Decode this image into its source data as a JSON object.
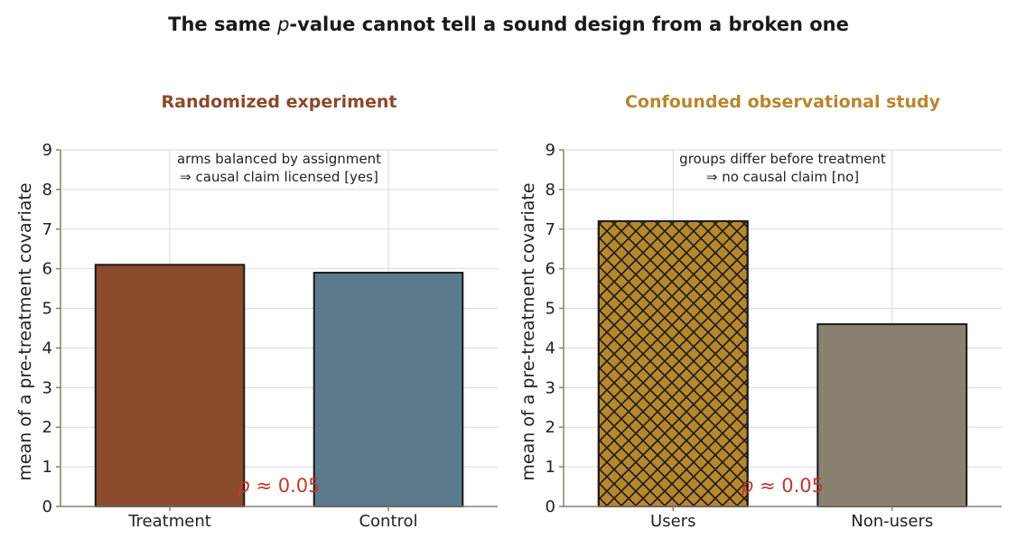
{
  "title": "The same p-value cannot tell a sound design from a broken one",
  "title_parts": {
    "before": "The same ",
    "italic": "p",
    "after": "-value cannot tell a sound design from a broken one"
  },
  "colors": {
    "treatment": "#8B4A2B",
    "control": "#5B7A8C",
    "users": "#B8862F",
    "non_users": "#8A8270",
    "panel1_title": "#8B4A2B",
    "panel2_title": "#B8862F",
    "pvalue": "#C0392B",
    "grid": "#d9d9d9",
    "axis": "#8a8070"
  },
  "chart_data": [
    {
      "type": "bar",
      "title": "Randomized experiment",
      "categories": [
        "Treatment",
        "Control"
      ],
      "values": [
        6.1,
        5.9
      ],
      "ylabel": "mean of a pre-treatment covariate",
      "ylim": [
        0,
        9
      ],
      "yticks": [
        0,
        1,
        2,
        3,
        4,
        5,
        6,
        7,
        8,
        9
      ],
      "grid": true,
      "annotation": [
        "arms balanced by assignment",
        "⇒ causal claim licensed [yes]"
      ],
      "pvalue_label": {
        "italic": "p",
        "text": " ≈ 0.05"
      },
      "hatch": [
        false,
        false
      ]
    },
    {
      "type": "bar",
      "title": "Confounded observational study",
      "categories": [
        "Users",
        "Non-users"
      ],
      "values": [
        7.2,
        4.6
      ],
      "ylabel": "mean of a pre-treatment covariate",
      "ylim": [
        0,
        9
      ],
      "yticks": [
        0,
        1,
        2,
        3,
        4,
        5,
        6,
        7,
        8,
        9
      ],
      "grid": true,
      "annotation": [
        "groups differ before treatment",
        "⇒ no causal claim [no]"
      ],
      "pvalue_label": {
        "italic": "p",
        "text": " ≈ 0.05"
      },
      "hatch": [
        true,
        false
      ]
    }
  ]
}
